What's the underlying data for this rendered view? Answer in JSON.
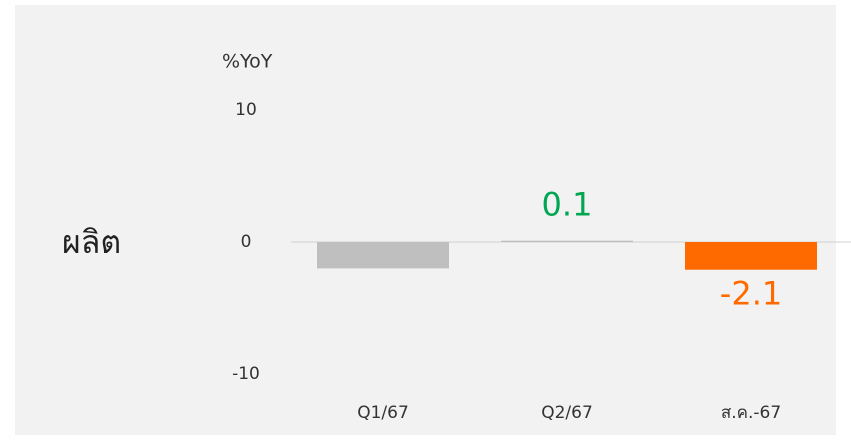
{
  "chart_data": {
    "type": "bar",
    "y_axis_label": "%YoY",
    "row_label": "ผลิต",
    "categories": [
      "Q1/67",
      "Q2/67",
      "ส.ค.-67"
    ],
    "values": [
      -2.0,
      0.1,
      -2.1
    ],
    "value_labels": [
      null,
      "0.1",
      "-2.1"
    ],
    "colors": [
      "#bfbfbf",
      "#bfbfbf",
      "#ff6a00"
    ],
    "label_colors": [
      null,
      "#00a651",
      "#ff6a00"
    ],
    "ylim": [
      -10,
      10
    ],
    "yticks": [
      -10,
      0,
      10
    ]
  }
}
